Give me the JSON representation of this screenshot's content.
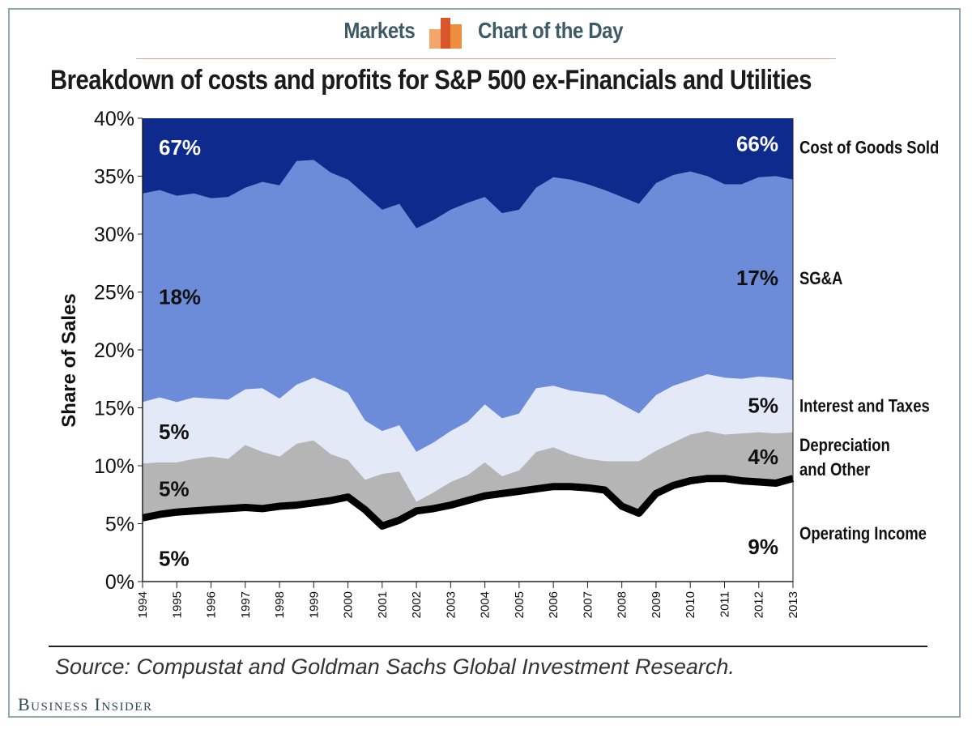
{
  "header": {
    "section_label": "Markets",
    "series_label": "Chart of the Day",
    "logo_icon": "orange-bars-logo-icon",
    "accent_color": "#e8883a"
  },
  "footer": {
    "source": "Source: Compustat and Goldman Sachs Global Investment Research.",
    "brand": "Business Insider"
  },
  "chart_data": {
    "type": "area",
    "stacked": true,
    "title": "Breakdown of costs and profits for S&P 500 ex-Financials and Utilities",
    "ylabel": "Share of Sales",
    "xlabel": "",
    "ylim": [
      0,
      40
    ],
    "yticks": [
      "0%",
      "5%",
      "10%",
      "15%",
      "20%",
      "25%",
      "30%",
      "35%",
      "40%"
    ],
    "xticks": [
      "1994",
      "1995",
      "1996",
      "1997",
      "1998",
      "1999",
      "2000",
      "2001",
      "2002",
      "2003",
      "2004",
      "2005",
      "2006",
      "2007",
      "2008",
      "2009",
      "2010",
      "2011",
      "2012",
      "2013"
    ],
    "x": [
      1994.0,
      1994.5,
      1995.0,
      1995.5,
      1996.0,
      1996.5,
      1997.0,
      1997.5,
      1998.0,
      1998.5,
      1999.0,
      1999.5,
      2000.0,
      2000.5,
      2001.0,
      2001.5,
      2002.0,
      2002.5,
      2003.0,
      2003.5,
      2004.0,
      2004.5,
      2005.0,
      2005.5,
      2006.0,
      2006.5,
      2007.0,
      2007.5,
      2008.0,
      2008.5,
      2009.0,
      2009.5,
      2010.0,
      2010.5,
      2011.0,
      2011.5,
      2012.0,
      2012.5,
      2013.0
    ],
    "boundaries": [
      {
        "name": "Operating Income",
        "values": [
          5.5,
          5.8,
          6.0,
          6.1,
          6.2,
          6.3,
          6.4,
          6.3,
          6.5,
          6.6,
          6.8,
          7.0,
          7.3,
          6.2,
          4.8,
          5.3,
          6.1,
          6.3,
          6.6,
          7.0,
          7.4,
          7.6,
          7.8,
          8.0,
          8.2,
          8.2,
          8.1,
          7.9,
          6.5,
          5.9,
          7.6,
          8.3,
          8.7,
          8.9,
          8.9,
          8.7,
          8.6,
          8.5,
          8.9
        ]
      },
      {
        "name": "Depreciation and Other",
        "values": [
          10.2,
          10.3,
          10.3,
          10.6,
          10.8,
          10.6,
          11.8,
          11.2,
          10.8,
          11.9,
          12.2,
          11.0,
          10.5,
          8.8,
          9.3,
          9.5,
          6.9,
          7.7,
          8.6,
          9.2,
          10.3,
          9.1,
          9.6,
          11.2,
          11.6,
          11.0,
          10.6,
          10.4,
          10.4,
          10.4,
          11.3,
          12.0,
          12.7,
          13.0,
          12.7,
          12.8,
          12.9,
          12.8,
          12.9
        ]
      },
      {
        "name": "Interest and Taxes",
        "values": [
          15.5,
          15.9,
          15.5,
          15.9,
          15.8,
          15.7,
          16.6,
          16.7,
          15.8,
          17.0,
          17.6,
          17.0,
          16.3,
          13.9,
          13.0,
          13.5,
          11.2,
          12.0,
          13.0,
          13.8,
          15.3,
          14.1,
          14.5,
          16.7,
          16.9,
          16.5,
          16.3,
          16.1,
          15.3,
          14.5,
          16.1,
          16.9,
          17.4,
          17.9,
          17.6,
          17.5,
          17.7,
          17.6,
          17.4
        ]
      },
      {
        "name": "SG&A",
        "values": [
          33.5,
          33.8,
          33.3,
          33.5,
          33.1,
          33.2,
          34.0,
          34.5,
          34.2,
          36.3,
          36.4,
          35.3,
          34.7,
          33.4,
          32.1,
          32.6,
          30.5,
          31.2,
          32.1,
          32.7,
          33.2,
          31.8,
          32.1,
          34.0,
          34.9,
          34.7,
          34.3,
          33.8,
          33.2,
          32.6,
          34.4,
          35.1,
          35.4,
          35.0,
          34.3,
          34.3,
          34.9,
          35.0,
          34.7
        ]
      },
      {
        "name": "Cost of Goods Sold",
        "values": [
          40,
          40,
          40,
          40,
          40,
          40,
          40,
          40,
          40,
          40,
          40,
          40,
          40,
          40,
          40,
          40,
          40,
          40,
          40,
          40,
          40,
          40,
          40,
          40,
          40,
          40,
          40,
          40,
          40,
          40,
          40,
          40,
          40,
          40,
          40,
          40,
          40,
          40,
          40
        ]
      }
    ],
    "series": [
      {
        "name": "Cost of Goods Sold",
        "color": "#0d2a8c",
        "start_label": "67%",
        "end_label": "66%"
      },
      {
        "name": "SG&A",
        "color": "#6c8bd8",
        "start_label": "18%",
        "end_label": "17%"
      },
      {
        "name": "Interest and Taxes",
        "color": "#e4e9f8",
        "start_label": "5%",
        "end_label": "5%"
      },
      {
        "name": "Depreciation and Other",
        "color": "#b5b5b5",
        "start_label": "5%",
        "end_label": "4%"
      },
      {
        "name": "Operating Income",
        "color": "#ffffff",
        "start_label": "5%",
        "end_label": "9%"
      }
    ],
    "legend_placement": "right",
    "grid": false
  }
}
